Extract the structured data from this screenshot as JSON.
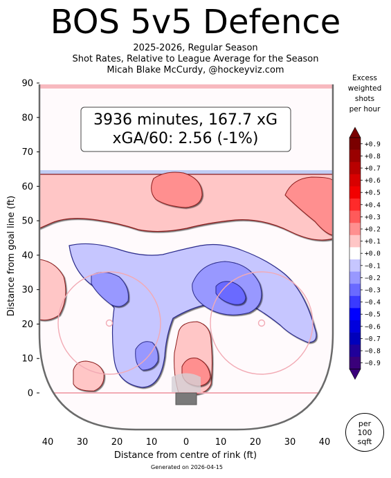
{
  "header": {
    "title": "BOS 5v5 Defence",
    "subtitle_lines": [
      "2025-2026, Regular Season",
      "Shot Rates, Relative to League Average for the Season",
      "Micah Blake McCurdy, @hockeyviz.com"
    ]
  },
  "summary_box": {
    "line1": "3936 minutes, 167.7 xG",
    "line2": "xGA/60: 2.56 (-1%)"
  },
  "colorbar": {
    "title_lines": [
      "Excess",
      "weighted",
      "shots",
      "per hour"
    ],
    "levels": [
      "+0.9",
      "+0.8",
      "+0.7",
      "+0.6",
      "+0.5",
      "+0.4",
      "+0.3",
      "+0.2",
      "+0.1",
      "+0.0",
      "−0.1",
      "−0.2",
      "−0.3",
      "−0.4",
      "−0.5",
      "−0.6",
      "−0.7",
      "−0.8",
      "−0.9"
    ],
    "colors": [
      "#7a0000",
      "#9a0000",
      "#b80000",
      "#d80000",
      "#f20000",
      "#ff2a2a",
      "#ff5a5a",
      "#ff8f8f",
      "#ffc6c6",
      "#ffffff",
      "#c6c6ff",
      "#9898ff",
      "#6a6aff",
      "#3a3aff",
      "#0000ff",
      "#0000dd",
      "#0000bb",
      "#20009a",
      "#3a007a"
    ]
  },
  "unit_badge": [
    "per",
    "100",
    "sqft"
  ],
  "footer": "Generated on 2026-04-15",
  "chart_data": {
    "type": "heatmap",
    "title": "BOS 5v5 Defence",
    "xlabel": "Distance from centre of rink (ft)",
    "ylabel": "Distance from goal line (ft)",
    "xlim": [
      42,
      -42
    ],
    "ylim": [
      -11,
      90
    ],
    "x_ticks": [
      40,
      30,
      20,
      10,
      0,
      10,
      20,
      30,
      40
    ],
    "y_ticks": [
      0,
      10,
      20,
      30,
      40,
      50,
      60,
      70,
      80,
      90
    ],
    "value_range": [
      -0.9,
      0.9
    ],
    "regions": [
      {
        "sign": "+",
        "level": 0.1,
        "description": "high slot band near blue line",
        "center": [
          0,
          52
        ]
      },
      {
        "sign": "+",
        "level": 0.3,
        "center": [
          -22,
          59
        ]
      },
      {
        "sign": "+",
        "level": 0.3,
        "center": [
          38,
          56
        ]
      },
      {
        "sign": "+",
        "level": 0.1,
        "center": [
          -38,
          30
        ]
      },
      {
        "sign": "−",
        "level": -0.2,
        "center": [
          22,
          30
        ]
      },
      {
        "sign": "−",
        "level": -0.3,
        "center": [
          -10,
          28
        ]
      },
      {
        "sign": "−",
        "level": -0.2,
        "center": [
          12,
          10
        ]
      },
      {
        "sign": "+",
        "level": 0.2,
        "center": [
          -3,
          6
        ]
      },
      {
        "sign": "+",
        "level": 0.1,
        "center": [
          30,
          5
        ]
      }
    ]
  }
}
